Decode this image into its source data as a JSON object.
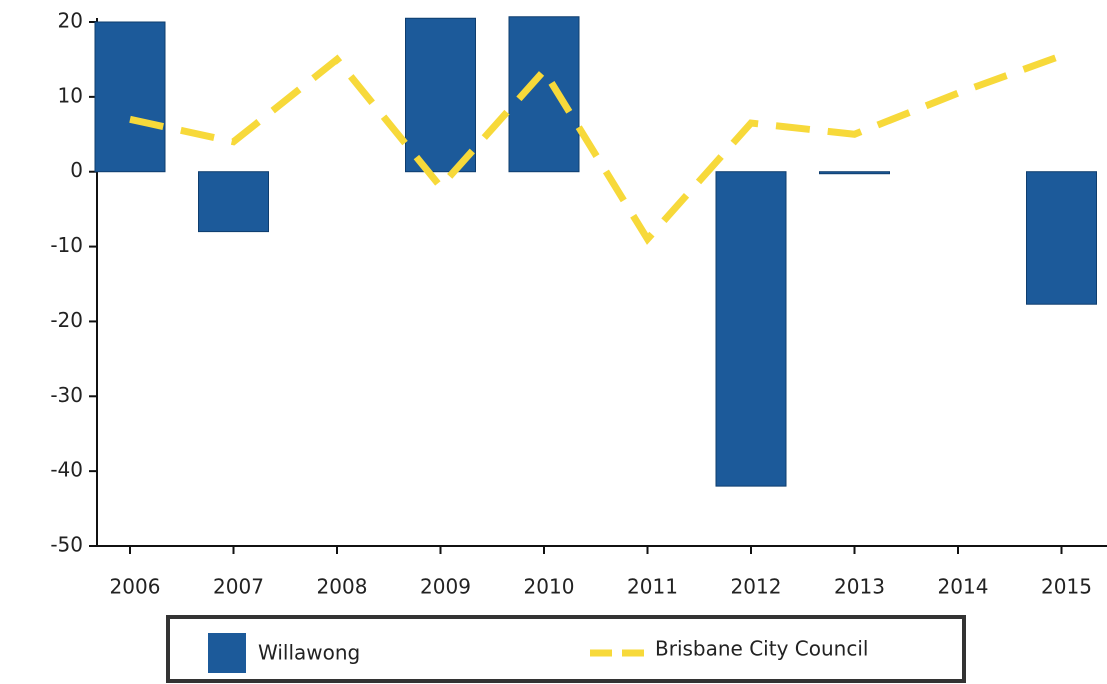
{
  "chart_data": {
    "type": "bar+line",
    "categories": [
      "2006",
      "2007",
      "2008",
      "2009",
      "2010",
      "2011",
      "2012",
      "2013",
      "2014",
      "2015"
    ],
    "series": [
      {
        "name": "Willawong",
        "type": "bar",
        "color": "#1c5a9a",
        "values": [
          20,
          -8,
          null,
          20.5,
          20.7,
          null,
          -42,
          0,
          null,
          -17.7
        ]
      },
      {
        "name": "Brisbane City Council",
        "type": "line",
        "color": "#f7d93a",
        "values": [
          7,
          4,
          15,
          -2,
          13.5,
          -9,
          6.5,
          5,
          10.5,
          15.5
        ]
      }
    ],
    "ylim": [
      -50,
      20
    ],
    "yticks": [
      -50,
      -40,
      -30,
      -20,
      -10,
      0,
      10,
      20
    ]
  }
}
